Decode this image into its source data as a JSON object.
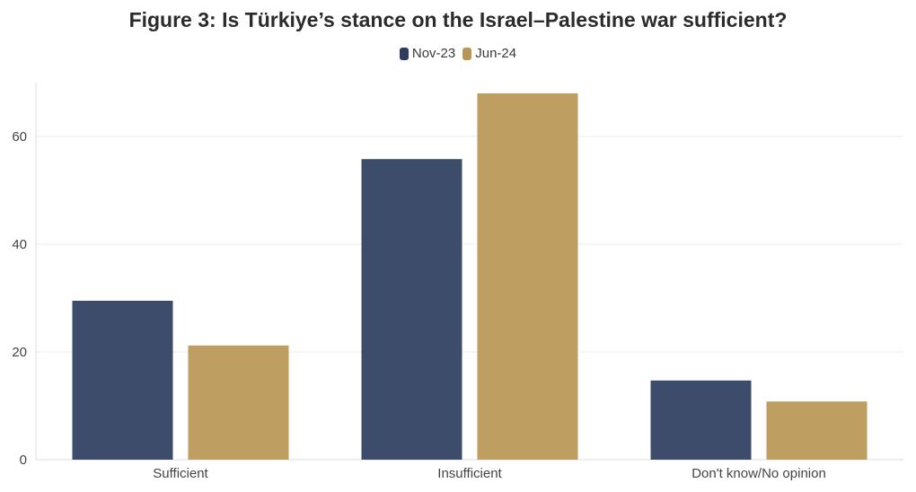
{
  "chart_data": {
    "type": "bar",
    "title": "Figure 3: Is Türkiye’s stance on the Israel–Palestine war sufficient?",
    "categories": [
      "Sufficient",
      "Insufficient",
      "Don't know/No opinion"
    ],
    "series": [
      {
        "name": "Nov-23",
        "color": "#2e3d5f",
        "values": [
          29.5,
          55.8,
          14.7
        ]
      },
      {
        "name": "Jun-24",
        "color": "#b89654",
        "values": [
          21.2,
          68.0,
          10.8
        ]
      }
    ],
    "ylim": [
      0,
      70
    ],
    "yticks": [
      0,
      20,
      40,
      60
    ],
    "grid": true,
    "legend": "top-center"
  }
}
